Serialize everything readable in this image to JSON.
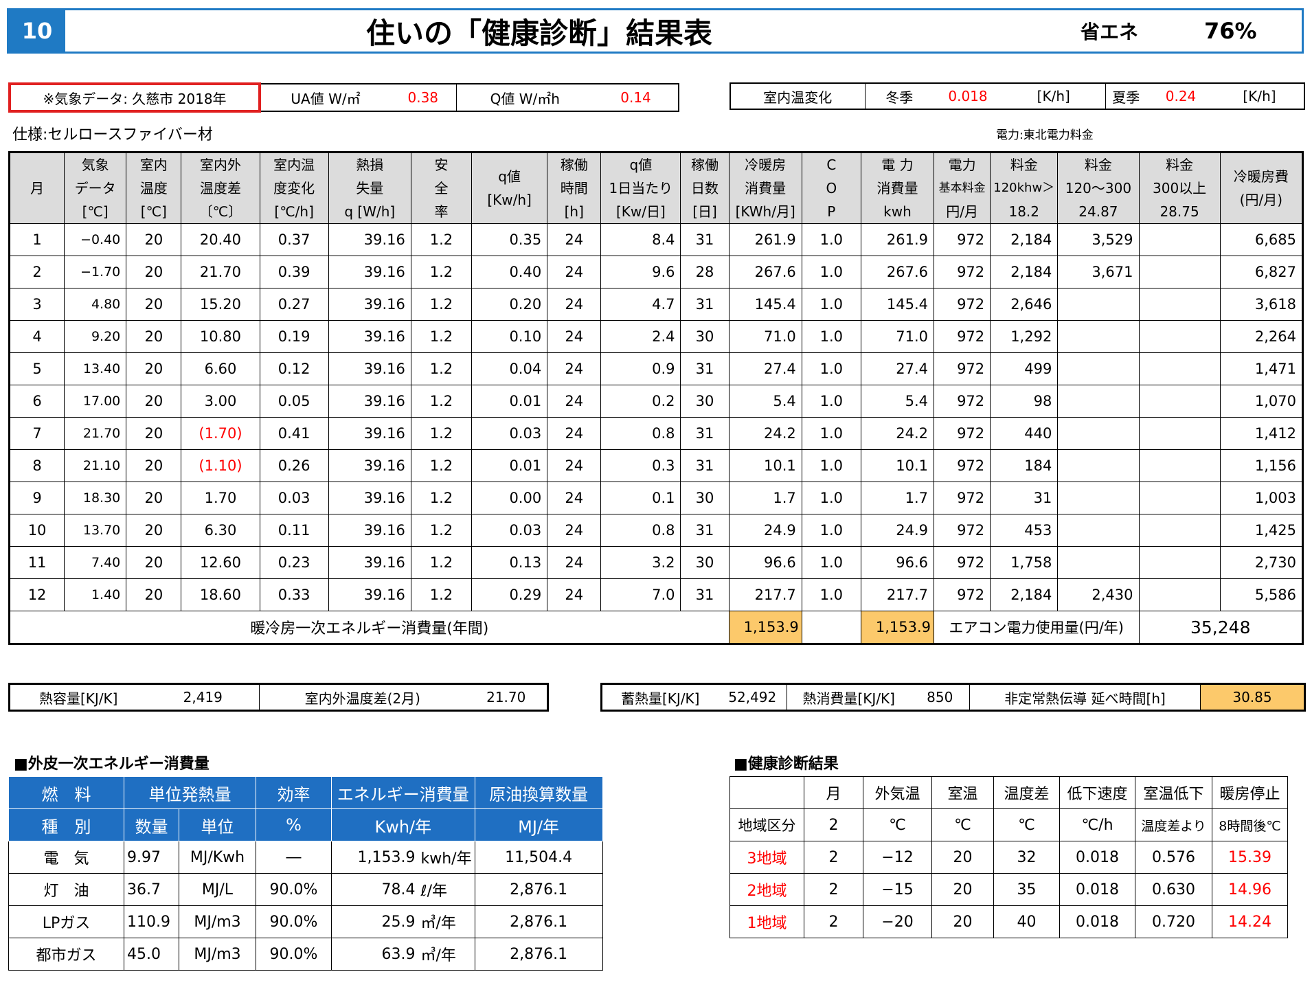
{
  "header": {
    "page_number": "10",
    "title": "住いの「健康診断」結果表",
    "energy_label": "省エネ",
    "energy_value": "76%"
  },
  "info": {
    "weather_data": "※気象データ: 久慈市  2018年",
    "ua_label": "UA値  W/㎡",
    "ua_value": "0.38",
    "q_label": "Q値  W/㎡h",
    "q_value": "0.14",
    "temp_change_label": "室内温変化",
    "winter_label": "冬季",
    "winter_value": "0.018",
    "winter_unit": "[K/h]",
    "summer_label": "夏季",
    "summer_value": "0.24",
    "summer_unit": "[K/h]"
  },
  "spec": "仕様:セルロースファイバー材",
  "power_company": "電力:東北電力料金",
  "main_table": {
    "headers": [
      [
        "月"
      ],
      [
        "気象",
        "データ",
        "[℃]"
      ],
      [
        "室内",
        "温度",
        "[℃]"
      ],
      [
        "室内外",
        "温度差",
        "〔℃〕"
      ],
      [
        "室内温",
        "度変化",
        "[℃/h]"
      ],
      [
        "熱損",
        "失量",
        "q [W/h]"
      ],
      [
        "安",
        "全",
        "率"
      ],
      [
        "q値",
        "[Kw/h]"
      ],
      [
        "稼働",
        "時間",
        "[h]"
      ],
      [
        "q値",
        "1日当たり",
        "[Kw/日]"
      ],
      [
        "稼働",
        "日数",
        "[日]"
      ],
      [
        "冷暖房",
        "消費量",
        "[KWh/月]"
      ],
      [
        "C",
        "O",
        "P"
      ],
      [
        "電 力",
        "消費量",
        "kwh"
      ],
      [
        "電力",
        "基本料金",
        "円/月"
      ],
      [
        "料金",
        "120khw＞",
        "18.2"
      ],
      [
        "料金",
        "120～300",
        "24.87"
      ],
      [
        "料金",
        "300以上",
        "28.75"
      ],
      [
        "冷暖房費",
        "(円/月)"
      ]
    ],
    "rows": [
      [
        "1",
        "−0.40",
        "20",
        "20.40",
        "0.37",
        "39.16",
        "1.2",
        "0.35",
        "24",
        "8.4",
        "31",
        "261.9",
        "1.0",
        "261.9",
        "972",
        "2,184",
        "3,529",
        "",
        "6,685"
      ],
      [
        "2",
        "−1.70",
        "20",
        "21.70",
        "0.39",
        "39.16",
        "1.2",
        "0.40",
        "24",
        "9.6",
        "28",
        "267.6",
        "1.0",
        "267.6",
        "972",
        "2,184",
        "3,671",
        "",
        "6,827"
      ],
      [
        "3",
        "4.80",
        "20",
        "15.20",
        "0.27",
        "39.16",
        "1.2",
        "0.20",
        "24",
        "4.7",
        "31",
        "145.4",
        "1.0",
        "145.4",
        "972",
        "2,646",
        "",
        "",
        "3,618"
      ],
      [
        "4",
        "9.20",
        "20",
        "10.80",
        "0.19",
        "39.16",
        "1.2",
        "0.10",
        "24",
        "2.4",
        "30",
        "71.0",
        "1.0",
        "71.0",
        "972",
        "1,292",
        "",
        "",
        "2,264"
      ],
      [
        "5",
        "13.40",
        "20",
        "6.60",
        "0.12",
        "39.16",
        "1.2",
        "0.04",
        "24",
        "0.9",
        "31",
        "27.4",
        "1.0",
        "27.4",
        "972",
        "499",
        "",
        "",
        "1,471"
      ],
      [
        "6",
        "17.00",
        "20",
        "3.00",
        "0.05",
        "39.16",
        "1.2",
        "0.01",
        "24",
        "0.2",
        "30",
        "5.4",
        "1.0",
        "5.4",
        "972",
        "98",
        "",
        "",
        "1,070"
      ],
      [
        "7",
        "21.70",
        "20",
        "(1.70)",
        "0.41",
        "39.16",
        "1.2",
        "0.03",
        "24",
        "0.8",
        "31",
        "24.2",
        "1.0",
        "24.2",
        "972",
        "440",
        "",
        "",
        "1,412"
      ],
      [
        "8",
        "21.10",
        "20",
        "(1.10)",
        "0.26",
        "39.16",
        "1.2",
        "0.01",
        "24",
        "0.3",
        "31",
        "10.1",
        "1.0",
        "10.1",
        "972",
        "184",
        "",
        "",
        "1,156"
      ],
      [
        "9",
        "18.30",
        "20",
        "1.70",
        "0.03",
        "39.16",
        "1.2",
        "0.00",
        "24",
        "0.1",
        "30",
        "1.7",
        "1.0",
        "1.7",
        "972",
        "31",
        "",
        "",
        "1,003"
      ],
      [
        "10",
        "13.70",
        "20",
        "6.30",
        "0.11",
        "39.16",
        "1.2",
        "0.03",
        "24",
        "0.8",
        "31",
        "24.9",
        "1.0",
        "24.9",
        "972",
        "453",
        "",
        "",
        "1,425"
      ],
      [
        "11",
        "7.40",
        "20",
        "12.60",
        "0.23",
        "39.16",
        "1.2",
        "0.13",
        "24",
        "3.2",
        "30",
        "96.6",
        "1.0",
        "96.6",
        "972",
        "1,758",
        "",
        "",
        "2,730"
      ],
      [
        "12",
        "1.40",
        "20",
        "18.60",
        "0.33",
        "39.16",
        "1.2",
        "0.29",
        "24",
        "7.0",
        "31",
        "217.7",
        "1.0",
        "217.7",
        "972",
        "2,184",
        "2,430",
        "",
        "5,586"
      ]
    ],
    "total_label": "暖冷房一次エネルギー消費量(年間)",
    "total_consumption": "1,153.9",
    "total_power": "1,153.9",
    "ac_cost_label": "エアコン電力使用量(円/年)",
    "ac_cost_value": "35,248"
  },
  "heat": {
    "capacity_label": "熱容量[KJ/K]",
    "capacity_value": "2,419",
    "diff_label": "室内外温度差(2月)",
    "diff_value": "21.70",
    "storage_label": "蓄熱量[KJ/K]",
    "storage_value": "52,492",
    "consumption_label": "熱消費量[KJ/K]",
    "consumption_value": "850",
    "transient_label": "非定常熱伝導  延べ時間[h]",
    "transient_value": "30.85"
  },
  "energy_section": {
    "title": "■外皮一次エネルギー消費量",
    "header1": [
      "燃　料",
      "単位発熱量",
      "効率",
      "エネルギー消費量",
      "原油換算数量"
    ],
    "header2": [
      "種　別",
      "数量",
      "単位",
      "%",
      "Kwh/年",
      "MJ/年"
    ],
    "rows": [
      [
        "電　気",
        "9.97",
        "MJ/Kwh",
        "―",
        "1,153.9",
        "kwh/年",
        "11,504.4"
      ],
      [
        "灯　油",
        "36.7",
        "MJ/L",
        "90.0%",
        "78.4",
        "ℓ/年",
        "2,876.1"
      ],
      [
        "LPガス",
        "110.9",
        "MJ/m3",
        "90.0%",
        "25.9",
        "㎥/年",
        "2,876.1"
      ],
      [
        "都市ガス",
        "45.0",
        "MJ/m3",
        "90.0%",
        "63.9",
        "㎥/年",
        "2,876.1"
      ]
    ]
  },
  "diagnosis": {
    "title": "■健康診断結果",
    "header1": [
      "",
      "月",
      "外気温",
      "室温",
      "温度差",
      "低下速度",
      "室温低下",
      "暖房停止"
    ],
    "header2": [
      "地域区分",
      "2",
      "℃",
      "℃",
      "℃",
      "℃/h",
      "温度差より",
      "8時間後℃"
    ],
    "rows": [
      [
        "3地域",
        "2",
        "−12",
        "20",
        "32",
        "0.018",
        "0.576",
        "15.39"
      ],
      [
        "2地域",
        "2",
        "−15",
        "20",
        "35",
        "0.018",
        "0.630",
        "14.96"
      ],
      [
        "1地域",
        "2",
        "−20",
        "20",
        "40",
        "0.018",
        "0.720",
        "14.24"
      ]
    ]
  }
}
